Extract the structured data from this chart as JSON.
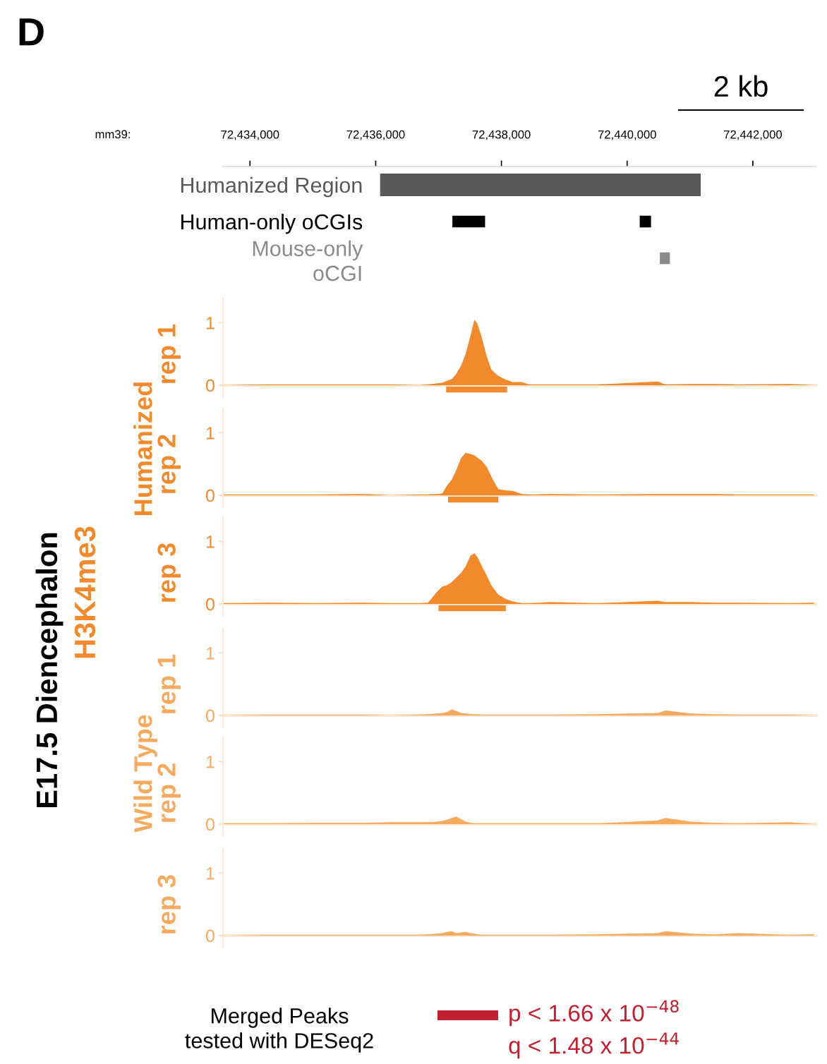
{
  "chart_data": [
    {
      "type": "bar",
      "orientation": "horizontal",
      "title": "D",
      "xlabel": "mm39:",
      "categories": [
        "Humanized Region",
        "Human-only oCGIs",
        "Mouse-only\noCGI"
      ],
      "series": [
        {
          "color": "#58585a",
          "values": [
            5100,
            null,
            null
          ],
          "base": [
            72436070,
            null,
            null
          ]
        },
        {
          "color": "#000000",
          "values": [
            null,
            520,
            null
          ],
          "base": [
            null,
            72437220,
            null
          ]
        },
        {
          "color": "#000000",
          "values": [
            null,
            180,
            null
          ],
          "base": [
            null,
            72440200,
            null
          ]
        },
        {
          "color": "#8a8a8a",
          "values": [
            null,
            null,
            160
          ],
          "base": [
            null,
            null,
            72440520
          ]
        }
      ],
      "xlim": [
        72433570,
        72443000
      ],
      "xticks": [
        {
          "value": 72434000,
          "label": "72,434,000"
        },
        {
          "value": 72436000,
          "label": "72,436,000"
        },
        {
          "value": 72438000,
          "label": "72,438,000"
        },
        {
          "value": 72440000,
          "label": "72,440,000"
        },
        {
          "value": 72442000,
          "label": "72,442,000"
        }
      ],
      "annotations": [
        "2 kb"
      ]
    },
    {
      "type": "area",
      "ylabel": "rep 1",
      "tick_labels": "y",
      "xlim": [
        72433570,
        72443000
      ],
      "ylim": [
        -0.2,
        1.4
      ],
      "yticks": [
        0,
        1
      ],
      "x": [
        72433580,
        72434290,
        72435040,
        72435790,
        72436240,
        72436680,
        72436830,
        72436980,
        72437060,
        72437130,
        72437210,
        72437280,
        72437360,
        72437430,
        72437510,
        72437570,
        72437620,
        72437690,
        72437770,
        72437840,
        72437950,
        72438070,
        72438180,
        72438330,
        72438440,
        72438780,
        72439520,
        72440490,
        72440610,
        72441020,
        72441390,
        72441770,
        72442590,
        72442970
      ],
      "series": [
        {
          "color": "#f08a2c",
          "values": [
            0,
            0.01,
            0.01,
            0.01,
            0.01,
            0,
            0.01,
            0.03,
            0.04,
            0.07,
            0.1,
            0.18,
            0.32,
            0.5,
            0.8,
            1.05,
            0.98,
            0.75,
            0.45,
            0.25,
            0.15,
            0.09,
            0.05,
            0.05,
            0.01,
            0.01,
            0.01,
            0.06,
            0.01,
            0.02,
            0.02,
            0.01,
            0.02,
            0
          ]
        },
        {
          "type": "line",
          "color": "#f08a2c",
          "x": [
            72437120,
            72438090
          ],
          "values": [
            -0.07,
            -0.07
          ]
        }
      ],
      "annotations": [
        "E17.5 Diencephalon",
        "H3K4me3",
        "Humanized"
      ]
    },
    {
      "type": "area",
      "ylabel": "rep 2",
      "tick_labels": "y",
      "xlim": [
        72433570,
        72443000
      ],
      "ylim": [
        -0.2,
        1.4
      ],
      "yticks": [
        0,
        1
      ],
      "x": [
        72433580,
        72434290,
        72435040,
        72435790,
        72436240,
        72436680,
        72436830,
        72436980,
        72437060,
        72437130,
        72437210,
        72437280,
        72437360,
        72437430,
        72437510,
        72437570,
        72437620,
        72437690,
        72437770,
        72437840,
        72437950,
        72438070,
        72438180,
        72438330,
        72438440,
        72438780,
        72439520,
        72440490,
        72440610,
        72441020,
        72441390,
        72441770,
        72442590,
        72442970
      ],
      "series": [
        {
          "color": "#f08a2c",
          "values": [
            0.01,
            0.01,
            0.01,
            0.02,
            0,
            0.01,
            0.01,
            0.02,
            0.03,
            0.15,
            0.25,
            0.4,
            0.6,
            0.68,
            0.66,
            0.64,
            0.6,
            0.55,
            0.45,
            0.3,
            0.1,
            0.08,
            0.07,
            0.02,
            0.01,
            0.02,
            0.01,
            0.02,
            0.02,
            0.02,
            0.02,
            0.01,
            0.01,
            0.01
          ]
        },
        {
          "type": "line",
          "color": "#f08a2c",
          "x": [
            72437150,
            72437950
          ],
          "values": [
            -0.07,
            -0.07
          ]
        }
      ]
    },
    {
      "type": "area",
      "ylabel": "rep 3",
      "tick_labels": "y",
      "xlim": [
        72433570,
        72443000
      ],
      "ylim": [
        -0.2,
        1.4
      ],
      "yticks": [
        0,
        1
      ],
      "x": [
        72433580,
        72434290,
        72435040,
        72435790,
        72436240,
        72436680,
        72436830,
        72436980,
        72437060,
        72437130,
        72437210,
        72437280,
        72437360,
        72437430,
        72437510,
        72437570,
        72437620,
        72437690,
        72437770,
        72437840,
        72437950,
        72438070,
        72438180,
        72438330,
        72438440,
        72438780,
        72439520,
        72440490,
        72440610,
        72441020,
        72441390,
        72441770,
        72442590,
        72442970
      ],
      "series": [
        {
          "color": "#f08a2c",
          "values": [
            0.01,
            0.02,
            0.01,
            0.02,
            0.01,
            0.01,
            0.02,
            0.2,
            0.28,
            0.3,
            0.35,
            0.42,
            0.5,
            0.6,
            0.78,
            0.81,
            0.75,
            0.6,
            0.45,
            0.3,
            0.15,
            0.08,
            0.04,
            0.01,
            0.01,
            0.03,
            0.01,
            0.05,
            0.03,
            0.03,
            0.02,
            0.02,
            0.01,
            0.02
          ]
        },
        {
          "type": "line",
          "color": "#f08a2c",
          "x": [
            72437000,
            72438070
          ],
          "values": [
            -0.07,
            -0.07
          ]
        }
      ]
    },
    {
      "type": "area",
      "ylabel": "rep 1",
      "tick_labels": "y",
      "xlim": [
        72433570,
        72443000
      ],
      "ylim": [
        -0.2,
        1.4
      ],
      "yticks": [
        0,
        1
      ],
      "x": [
        72433580,
        72434290,
        72435040,
        72435790,
        72436240,
        72436680,
        72436830,
        72436980,
        72437060,
        72437130,
        72437210,
        72437280,
        72437360,
        72437430,
        72437510,
        72437570,
        72437620,
        72437690,
        72437770,
        72437840,
        72437950,
        72438070,
        72438180,
        72438330,
        72438440,
        72438780,
        72439520,
        72440490,
        72440610,
        72441020,
        72441390,
        72441770,
        72442590,
        72442970
      ],
      "series": [
        {
          "color": "#f6aa5f",
          "values": [
            0,
            0.01,
            0.01,
            0.01,
            0,
            0.01,
            0.02,
            0.03,
            0.04,
            0.05,
            0.1,
            0.07,
            0.04,
            0.03,
            0.02,
            0.02,
            0.02,
            0.01,
            0.01,
            0.01,
            0.01,
            0.01,
            0.01,
            0.01,
            0.01,
            0.01,
            0.02,
            0.04,
            0.08,
            0.03,
            0.02,
            0.01,
            0.01,
            0
          ]
        }
      ],
      "annotations": [
        "Wild Type"
      ]
    },
    {
      "type": "area",
      "ylabel": "rep 2",
      "tick_labels": "y",
      "xlim": [
        72433570,
        72443000
      ],
      "ylim": [
        -0.2,
        1.4
      ],
      "yticks": [
        0,
        1
      ],
      "x": [
        72433580,
        72434290,
        72435040,
        72435790,
        72436240,
        72436680,
        72436830,
        72436980,
        72437060,
        72437130,
        72437210,
        72437280,
        72437360,
        72437430,
        72437510,
        72437570,
        72437620,
        72437690,
        72437770,
        72437840,
        72437950,
        72438070,
        72438180,
        72438330,
        72438440,
        72438780,
        72439520,
        72440490,
        72440610,
        72441020,
        72441390,
        72441770,
        72442590,
        72442970
      ],
      "series": [
        {
          "color": "#f6aa5f",
          "values": [
            0.01,
            0.01,
            0.02,
            0.02,
            0.03,
            0.03,
            0.03,
            0.04,
            0.05,
            0.07,
            0.1,
            0.12,
            0.08,
            0.04,
            0.02,
            0.01,
            0.01,
            0.01,
            0.01,
            0.01,
            0.01,
            0.01,
            0.01,
            0.01,
            0.01,
            0.01,
            0.01,
            0.06,
            0.1,
            0.04,
            0.02,
            0.01,
            0.03,
            0
          ]
        }
      ]
    },
    {
      "type": "area",
      "ylabel": "rep 3",
      "tick_labels": "y",
      "xlim": [
        72433570,
        72443000
      ],
      "ylim": [
        -0.2,
        1.4
      ],
      "yticks": [
        0,
        1
      ],
      "x": [
        72433580,
        72434290,
        72435040,
        72435790,
        72436240,
        72436680,
        72436830,
        72436980,
        72437060,
        72437130,
        72437210,
        72437280,
        72437360,
        72437430,
        72437510,
        72437570,
        72437620,
        72437690,
        72437770,
        72437840,
        72437950,
        72438070,
        72438180,
        72438330,
        72438440,
        72438780,
        72439520,
        72440490,
        72440610,
        72441020,
        72441390,
        72441770,
        72442590,
        72442970
      ],
      "series": [
        {
          "color": "#f6aa5f",
          "values": [
            0,
            0.01,
            0.01,
            0.01,
            0.01,
            0.01,
            0.02,
            0.03,
            0.04,
            0.06,
            0.07,
            0.04,
            0.05,
            0.06,
            0.04,
            0.03,
            0.02,
            0.01,
            0.01,
            0.01,
            0.01,
            0.01,
            0.01,
            0.01,
            0.01,
            0.01,
            0.02,
            0.04,
            0.07,
            0.03,
            0.02,
            0.04,
            0.01,
            0.02
          ]
        }
      ],
      "annotations": [
        "Merged Peaks\ntested with DESeq2",
        "p < 1.66 x 10$^{−48}$",
        "q < 1.48 x 10$^{−44}$"
      ]
    }
  ]
}
